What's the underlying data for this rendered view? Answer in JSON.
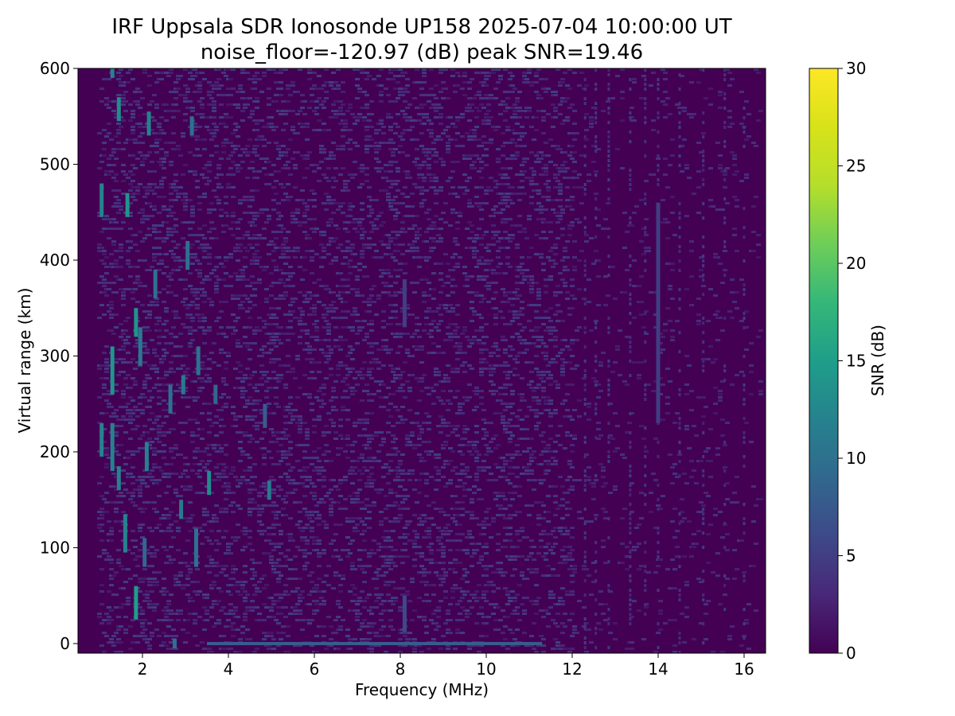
{
  "chart_data": {
    "type": "heatmap",
    "title": "IRF Uppsala SDR Ionosonde UP158 2025-07-04 10:00:00  UT",
    "subtitle": "noise_floor=-120.97 (dB) peak SNR=19.46",
    "xlabel": "Frequency (MHz)",
    "ylabel": "Virtual range (km)",
    "colorbar_label": "SNR (dB)",
    "colormap": "viridis",
    "xlim": [
      0.5,
      16.5
    ],
    "ylim": [
      -10,
      600
    ],
    "clim": [
      0,
      30
    ],
    "x_ticks": [
      2,
      4,
      6,
      8,
      10,
      12,
      14,
      16
    ],
    "y_ticks": [
      0,
      100,
      200,
      300,
      400,
      500,
      600
    ],
    "colorbar_ticks": [
      0,
      5,
      10,
      15,
      20,
      25,
      30
    ],
    "noise_floor_db": -120.97,
    "peak_snr_db": 19.46,
    "background_snr_db": 1,
    "features": [
      {
        "freq_mhz": 1.3,
        "range_min_km": 260,
        "range_max_km": 310,
        "snr_db": 14
      },
      {
        "freq_mhz": 1.3,
        "range_min_km": 180,
        "range_max_km": 230,
        "snr_db": 12
      },
      {
        "freq_mhz": 1.05,
        "range_min_km": 195,
        "range_max_km": 230,
        "snr_db": 12
      },
      {
        "freq_mhz": 1.45,
        "range_min_km": 160,
        "range_max_km": 185,
        "snr_db": 12
      },
      {
        "freq_mhz": 1.6,
        "range_min_km": 95,
        "range_max_km": 135,
        "snr_db": 12
      },
      {
        "freq_mhz": 1.85,
        "range_min_km": 25,
        "range_max_km": 60,
        "snr_db": 15
      },
      {
        "freq_mhz": 1.85,
        "range_min_km": 320,
        "range_max_km": 350,
        "snr_db": 14
      },
      {
        "freq_mhz": 1.95,
        "range_min_km": 290,
        "range_max_km": 330,
        "snr_db": 11
      },
      {
        "freq_mhz": 1.65,
        "range_min_km": 445,
        "range_max_km": 470,
        "snr_db": 14
      },
      {
        "freq_mhz": 1.05,
        "range_min_km": 445,
        "range_max_km": 480,
        "snr_db": 12
      },
      {
        "freq_mhz": 1.45,
        "range_min_km": 545,
        "range_max_km": 570,
        "snr_db": 13
      },
      {
        "freq_mhz": 1.3,
        "range_min_km": 590,
        "range_max_km": 600,
        "snr_db": 12
      },
      {
        "freq_mhz": 2.15,
        "range_min_km": 530,
        "range_max_km": 555,
        "snr_db": 12
      },
      {
        "freq_mhz": 2.3,
        "range_min_km": 360,
        "range_max_km": 390,
        "snr_db": 10
      },
      {
        "freq_mhz": 2.1,
        "range_min_km": 180,
        "range_max_km": 210,
        "snr_db": 12
      },
      {
        "freq_mhz": 2.05,
        "range_min_km": 80,
        "range_max_km": 110,
        "snr_db": 9
      },
      {
        "freq_mhz": 2.65,
        "range_min_km": 240,
        "range_max_km": 270,
        "snr_db": 10
      },
      {
        "freq_mhz": 2.9,
        "range_min_km": 130,
        "range_max_km": 150,
        "snr_db": 11
      },
      {
        "freq_mhz": 2.95,
        "range_min_km": 260,
        "range_max_km": 280,
        "snr_db": 11
      },
      {
        "freq_mhz": 3.05,
        "range_min_km": 390,
        "range_max_km": 420,
        "snr_db": 10
      },
      {
        "freq_mhz": 3.15,
        "range_min_km": 530,
        "range_max_km": 550,
        "snr_db": 10
      },
      {
        "freq_mhz": 3.25,
        "range_min_km": 80,
        "range_max_km": 120,
        "snr_db": 10
      },
      {
        "freq_mhz": 3.3,
        "range_min_km": 280,
        "range_max_km": 310,
        "snr_db": 10
      },
      {
        "freq_mhz": 3.55,
        "range_min_km": 155,
        "range_max_km": 180,
        "snr_db": 13
      },
      {
        "freq_mhz": 3.7,
        "range_min_km": 250,
        "range_max_km": 270,
        "snr_db": 9
      },
      {
        "freq_mhz": 4.95,
        "range_min_km": 150,
        "range_max_km": 170,
        "snr_db": 11
      },
      {
        "freq_mhz": 4.85,
        "range_min_km": 225,
        "range_max_km": 250,
        "snr_db": 8
      },
      {
        "freq_mhz": 8.1,
        "range_min_km": 12,
        "range_max_km": 50,
        "snr_db": 6
      },
      {
        "freq_mhz": 8.1,
        "range_min_km": 330,
        "range_max_km": 380,
        "snr_db": 5
      },
      {
        "freq_mhz": 14.0,
        "range_min_km": 230,
        "range_max_km": 460,
        "snr_db": 5
      },
      {
        "freq_mhz": 2.75,
        "range_min_km": -5,
        "range_max_km": 5,
        "snr_db": 10
      }
    ],
    "ground_echo": {
      "range_km": 0,
      "freq_start_mhz": 3.5,
      "freq_end_mhz": 11.3,
      "snr_db": 8
    },
    "interference_columns_mhz": [
      12.3,
      12.55,
      12.85,
      13.35,
      13.7,
      14.0,
      14.5,
      15.05,
      15.55,
      16.0
    ]
  }
}
